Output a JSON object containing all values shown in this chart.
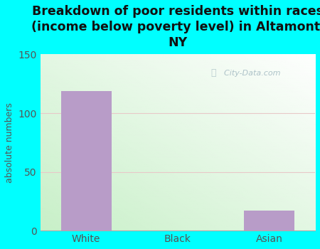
{
  "title": "Breakdown of poor residents within races\n(income below poverty level) in Altamont,\nNY",
  "categories": [
    "White",
    "Black",
    "Asian"
  ],
  "values": [
    119,
    0,
    17
  ],
  "bar_color": "#b89cc8",
  "ylabel": "absolute numbers",
  "ylim": [
    0,
    150
  ],
  "yticks": [
    0,
    50,
    100,
    150
  ],
  "bg_color": "#00ffff",
  "title_fontsize": 12.5,
  "axis_label_fontsize": 9,
  "tick_fontsize": 10,
  "tick_color": "#555555",
  "grid_color": "#e8c8c8",
  "watermark": "City-Data.com"
}
